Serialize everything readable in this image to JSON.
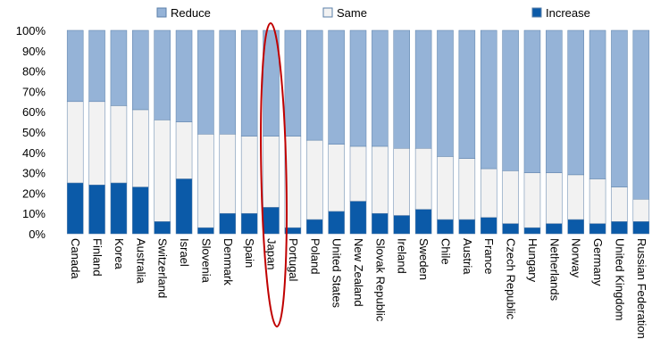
{
  "chart_data": {
    "type": "bar",
    "stacked": true,
    "orientation": "vertical",
    "normalized_percent": true,
    "ylim": [
      0,
      100
    ],
    "yticks": [
      "0%",
      "10%",
      "20%",
      "30%",
      "40%",
      "50%",
      "60%",
      "70%",
      "80%",
      "90%",
      "100%"
    ],
    "grid": false,
    "legend_position": "top",
    "categories": [
      "Canada",
      "Finland",
      "Korea",
      "Australia",
      "Switzerland",
      "Israel",
      "Slovenia",
      "Denmark",
      "Spain",
      "Japan",
      "Portugal",
      "Poland",
      "United States",
      "New Zealand",
      "Slovak Republic",
      "Ireland",
      "Sweden",
      "Chile",
      "Austria",
      "France",
      "Czech Republic",
      "Hungary",
      "Netherlands",
      "Norway",
      "Germany",
      "United Kingdom",
      "Russian Federation"
    ],
    "series": [
      {
        "name": "Increase",
        "color": "#0b5aa8",
        "values": [
          25,
          24,
          25,
          23,
          6,
          27,
          3,
          10,
          10,
          13,
          3,
          7,
          11,
          16,
          10,
          9,
          12,
          7,
          7,
          8,
          5,
          3,
          5,
          7,
          5,
          6,
          6
        ]
      },
      {
        "name": "Same",
        "color": "#f2f2f2",
        "values": [
          40,
          41,
          38,
          38,
          50,
          28,
          46,
          39,
          38,
          35,
          45,
          39,
          33,
          27,
          33,
          33,
          30,
          31,
          30,
          24,
          26,
          27,
          25,
          22,
          22,
          17,
          11
        ]
      },
      {
        "name": "Reduce",
        "color": "#95b3d7",
        "values": [
          35,
          35,
          37,
          39,
          44,
          45,
          51,
          51,
          52,
          52,
          52,
          54,
          56,
          57,
          57,
          58,
          58,
          62,
          63,
          68,
          69,
          70,
          70,
          71,
          73,
          77,
          83
        ]
      }
    ],
    "legend": [
      "Reduce",
      "Same",
      "Increase"
    ],
    "annotations": [
      {
        "type": "ellipse",
        "color": "#c00000",
        "highlight_category": "Japan"
      }
    ]
  }
}
